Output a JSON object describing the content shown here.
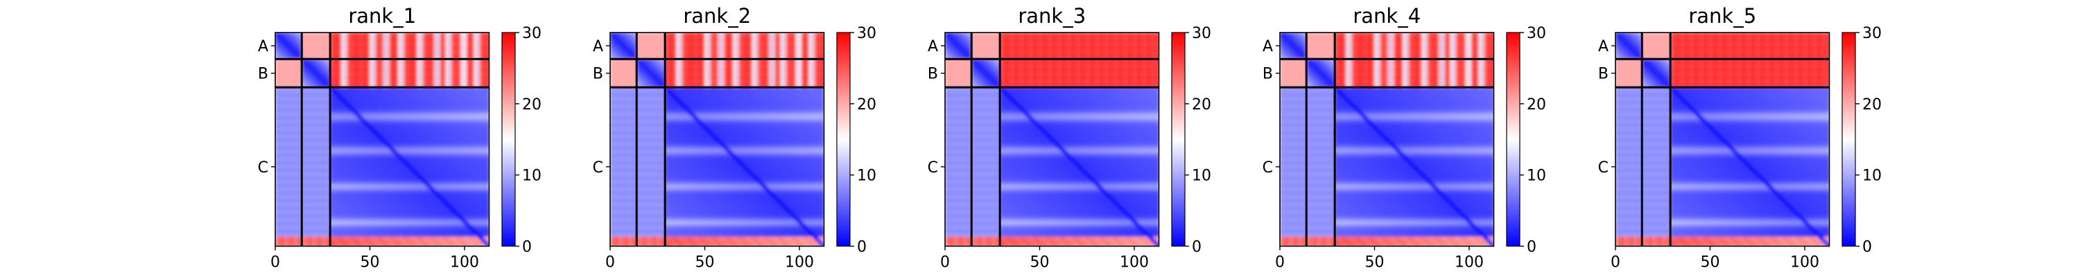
{
  "chart_data": {
    "type": "heatmap",
    "panels": [
      {
        "title": "rank_1",
        "chains": [
          {
            "label": "A",
            "start": 0,
            "end": 14
          },
          {
            "label": "B",
            "start": 14,
            "end": 29
          },
          {
            "label": "C",
            "start": 29,
            "end": 113
          }
        ],
        "inter_high_patches": [
          36,
          51,
          58,
          66,
          76,
          85,
          91,
          99,
          106
        ],
        "xticks": [
          0,
          50,
          100
        ],
        "xlim": [
          0,
          113
        ]
      },
      {
        "title": "rank_2",
        "chains": [
          {
            "label": "A",
            "start": 0,
            "end": 14
          },
          {
            "label": "B",
            "start": 14,
            "end": 29
          },
          {
            "label": "C",
            "start": 29,
            "end": 113
          }
        ],
        "inter_high_patches": [
          36,
          51,
          58,
          66,
          76,
          85,
          91,
          99,
          106
        ],
        "xticks": [
          0,
          50,
          100
        ],
        "xlim": [
          0,
          113
        ]
      },
      {
        "title": "rank_3",
        "chains": [
          {
            "label": "A",
            "start": 0,
            "end": 14
          },
          {
            "label": "B",
            "start": 14,
            "end": 29
          },
          {
            "label": "C",
            "start": 29,
            "end": 113
          }
        ],
        "inter_high_patches": [],
        "xticks": [
          0,
          50,
          100
        ],
        "xlim": [
          0,
          113
        ]
      },
      {
        "title": "rank_4",
        "chains": [
          {
            "label": "A",
            "start": 0,
            "end": 14
          },
          {
            "label": "B",
            "start": 14,
            "end": 29
          },
          {
            "label": "C",
            "start": 29,
            "end": 113
          }
        ],
        "inter_high_patches": [
          36,
          51,
          58,
          66,
          76,
          85,
          91,
          99,
          106
        ],
        "xticks": [
          0,
          50,
          100
        ],
        "xlim": [
          0,
          113
        ]
      },
      {
        "title": "rank_5",
        "chains": [
          {
            "label": "A",
            "start": 0,
            "end": 14
          },
          {
            "label": "B",
            "start": 14,
            "end": 29
          },
          {
            "label": "C",
            "start": 29,
            "end": 113
          }
        ],
        "inter_high_patches": [],
        "xticks": [
          0,
          50,
          100
        ],
        "xlim": [
          0,
          113
        ]
      }
    ],
    "colorbar": {
      "min": 0,
      "max": 30,
      "ticks": [
        0,
        10,
        20,
        30
      ],
      "colormap": "bwr",
      "colors": {
        "low": "#0000ff",
        "mid": "#ffffff",
        "high": "#ff0000"
      }
    },
    "chain_divider_color": "#000000"
  }
}
